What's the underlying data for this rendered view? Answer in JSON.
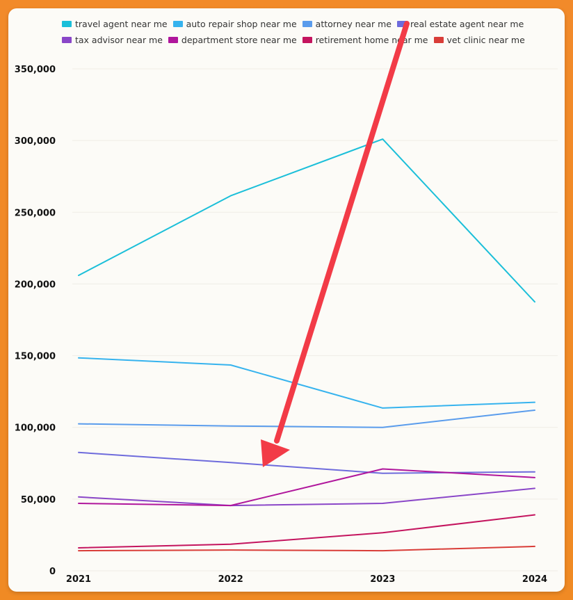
{
  "chart_data": {
    "type": "line",
    "title": "",
    "xlabel": "",
    "ylabel": "",
    "categories": [
      "2021",
      "2022",
      "2023",
      "2024"
    ],
    "ylim": [
      0,
      350000
    ],
    "yticks": [
      0,
      50000,
      100000,
      150000,
      200000,
      250000,
      300000,
      350000
    ],
    "ytick_labels": [
      "0",
      "50,000",
      "100,000",
      "150,000",
      "200,000",
      "250,000",
      "300,000",
      "350,000"
    ],
    "grid": true,
    "legend_position": "top",
    "series": [
      {
        "name": "travel agent near me",
        "color": "#1bbfd9",
        "values": [
          206000,
          261500,
          301000,
          187500
        ]
      },
      {
        "name": "auto repair shop near me",
        "color": "#36b3ee",
        "values": [
          148500,
          143500,
          113500,
          117500
        ]
      },
      {
        "name": "attorney near me",
        "color": "#5a9cec",
        "values": [
          102500,
          101000,
          100000,
          112000
        ]
      },
      {
        "name": "real estate agent near me",
        "color": "#6e6bdc",
        "values": [
          82500,
          75500,
          68000,
          69000
        ]
      },
      {
        "name": "tax advisor near me",
        "color": "#8a46c8",
        "values": [
          51500,
          45500,
          47000,
          57500
        ]
      },
      {
        "name": "department store near me",
        "color": "#b0169c",
        "values": [
          47000,
          45500,
          71000,
          65000
        ]
      },
      {
        "name": "retirement home near me",
        "color": "#c4145e",
        "values": [
          16000,
          18500,
          26500,
          39000
        ]
      },
      {
        "name": "vet clinic near me",
        "color": "#d93d38",
        "values": [
          14000,
          14500,
          14000,
          17000
        ]
      }
    ]
  },
  "annotation": {
    "type": "arrow",
    "color": "#f23b47",
    "description": "red arrow pointing down"
  }
}
